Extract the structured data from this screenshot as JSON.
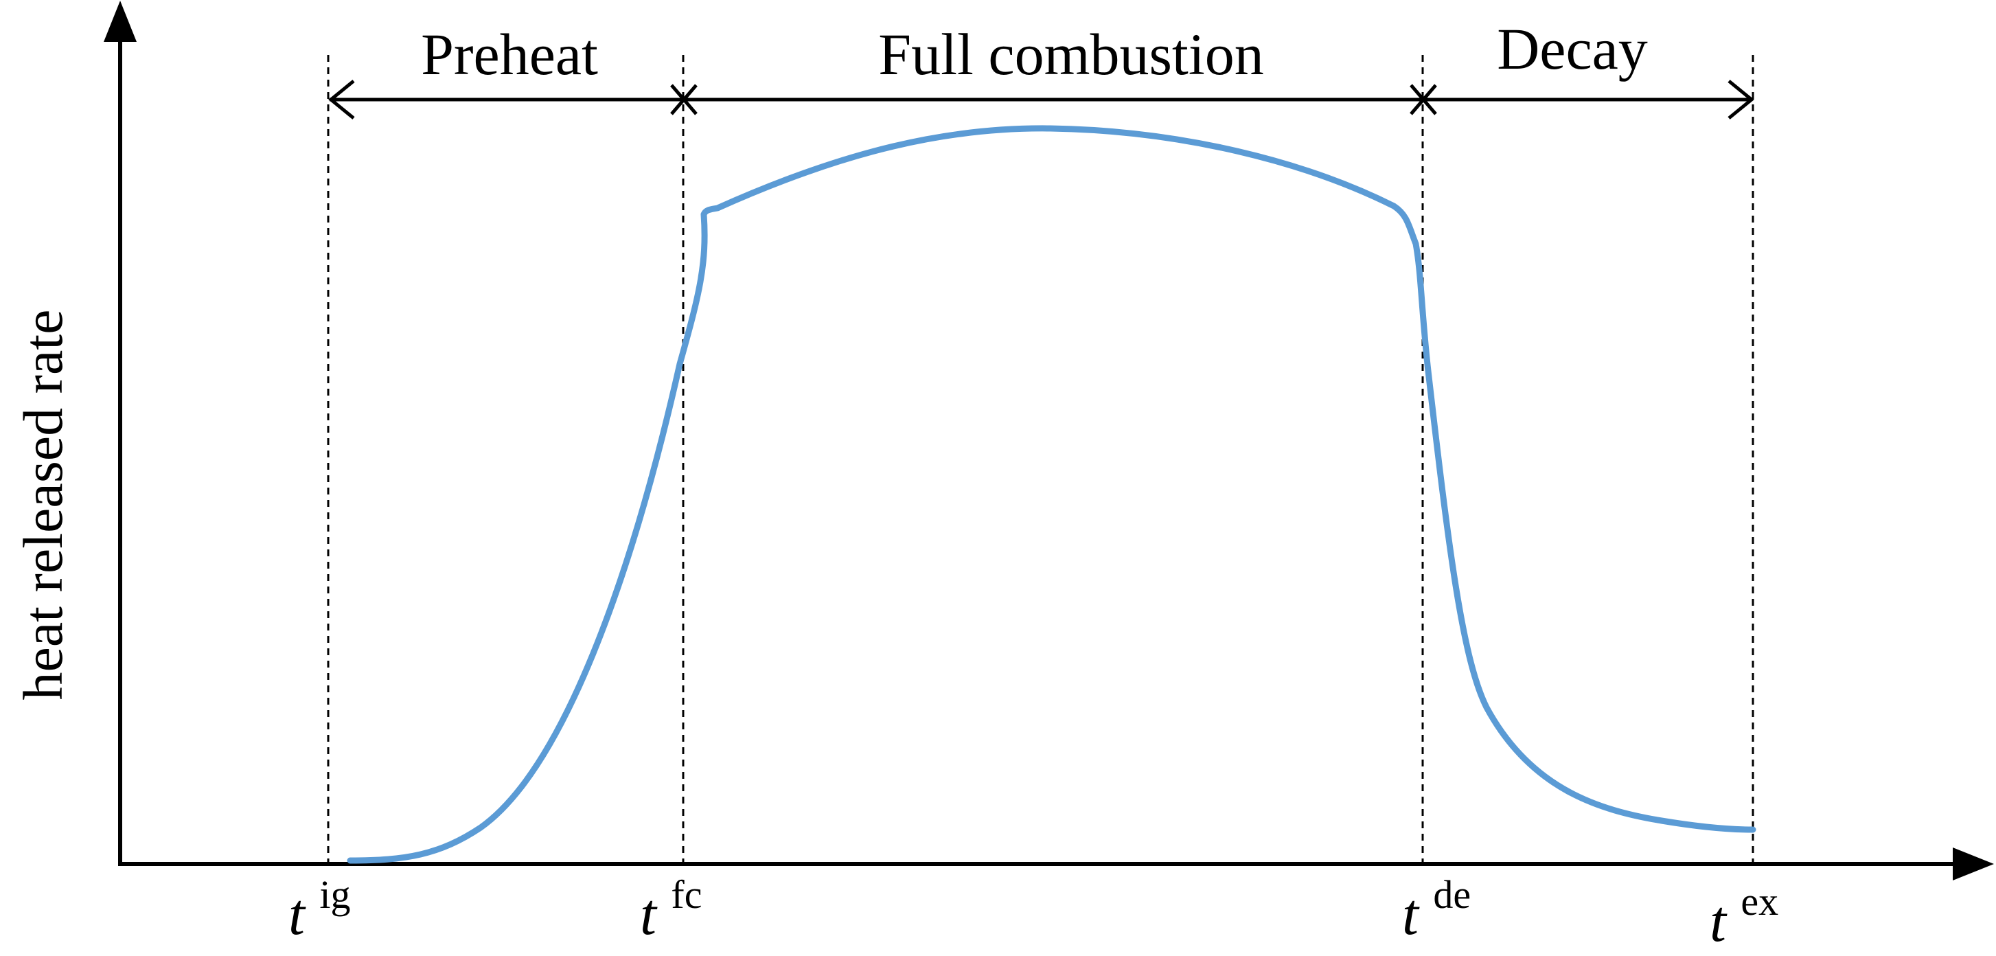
{
  "figure": {
    "y_axis_label": "heat released rate",
    "phases": [
      {
        "label": "Preheat"
      },
      {
        "label": "Full combustion"
      },
      {
        "label": "Decay"
      }
    ],
    "time_markers": [
      {
        "base": "t",
        "sup": "ig"
      },
      {
        "base": "t",
        "sup": "fc"
      },
      {
        "base": "t",
        "sup": "de"
      },
      {
        "base": "t",
        "sup": "ex"
      }
    ]
  },
  "colors": {
    "curve": "#5b9bd5",
    "axes": "#000000"
  }
}
